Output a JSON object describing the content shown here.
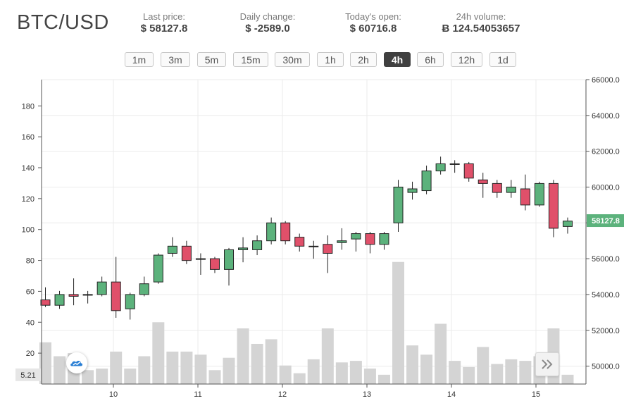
{
  "header": {
    "pair": "BTC/USD",
    "stats": [
      {
        "label": "Last price:",
        "value": "$ 58127.8"
      },
      {
        "label": "Daily change:",
        "value": "$ -2589.0"
      },
      {
        "label": "Today's open:",
        "value": "$ 60716.8"
      },
      {
        "label": "24h volume:",
        "value": "Ƀ 124.54053657"
      }
    ]
  },
  "intervals": [
    "1m",
    "3m",
    "5m",
    "15m",
    "30m",
    "1h",
    "2h",
    "4h",
    "6h",
    "12h",
    "1d"
  ],
  "active_interval": "4h",
  "colors": {
    "up": "#5cb27c",
    "down": "#e0506a",
    "volume": "#d4d4d4",
    "grid": "#ebebeb",
    "last_price_tag": "#5cb27c"
  },
  "icons": {
    "logo": "tradingview-cloud-icon",
    "scroll": "double-chevron-right-icon"
  },
  "chart_data": {
    "type": "candlestick",
    "x_ticks": [
      "10",
      "11",
      "12",
      "13",
      "14",
      "15"
    ],
    "price_axis": {
      "range": [
        49000,
        66000
      ],
      "ticks": [
        "50000.0",
        "52000.0",
        "54000.0",
        "56000.0",
        "58000.0",
        "60000.0",
        "62000.0",
        "64000.0",
        "66000.0"
      ]
    },
    "volume_axis": {
      "range": [
        0,
        197
      ],
      "ticks": [
        "20",
        "40",
        "60",
        "80",
        "100",
        "120",
        "140",
        "160",
        "180"
      ],
      "current": "5.21"
    },
    "last_price_label": "58127.8",
    "last_price": 58127.8,
    "grid": true,
    "candles": [
      {
        "o": 53700,
        "h": 54400,
        "l": 53300,
        "c": 53400,
        "v": 27
      },
      {
        "o": 53400,
        "h": 54200,
        "l": 53200,
        "c": 54000,
        "v": 18
      },
      {
        "o": 54000,
        "h": 54900,
        "l": 53400,
        "c": 53900,
        "v": 20
      },
      {
        "o": 54000,
        "h": 54200,
        "l": 53500,
        "c": 54000,
        "v": 9
      },
      {
        "o": 54000,
        "h": 55000,
        "l": 53900,
        "c": 54700,
        "v": 10
      },
      {
        "o": 54700,
        "h": 56100,
        "l": 52700,
        "c": 53100,
        "v": 21
      },
      {
        "o": 53200,
        "h": 54100,
        "l": 52600,
        "c": 54000,
        "v": 10
      },
      {
        "o": 54000,
        "h": 55000,
        "l": 53900,
        "c": 54600,
        "v": 18
      },
      {
        "o": 54700,
        "h": 56300,
        "l": 54600,
        "c": 56200,
        "v": 40
      },
      {
        "o": 56300,
        "h": 57200,
        "l": 56100,
        "c": 56700,
        "v": 21
      },
      {
        "o": 56700,
        "h": 57000,
        "l": 55700,
        "c": 55900,
        "v": 21
      },
      {
        "o": 56000,
        "h": 56300,
        "l": 55100,
        "c": 56000,
        "v": 19
      },
      {
        "o": 56000,
        "h": 56100,
        "l": 55200,
        "c": 55400,
        "v": 9
      },
      {
        "o": 55400,
        "h": 56600,
        "l": 54500,
        "c": 56500,
        "v": 17
      },
      {
        "o": 56500,
        "h": 57200,
        "l": 55800,
        "c": 56600,
        "v": 36
      },
      {
        "o": 56500,
        "h": 57300,
        "l": 56200,
        "c": 57000,
        "v": 26
      },
      {
        "o": 57000,
        "h": 58300,
        "l": 56800,
        "c": 58000,
        "v": 29
      },
      {
        "o": 58000,
        "h": 58100,
        "l": 56800,
        "c": 57000,
        "v": 12
      },
      {
        "o": 57200,
        "h": 57400,
        "l": 56400,
        "c": 56700,
        "v": 7
      },
      {
        "o": 56700,
        "h": 57000,
        "l": 56000,
        "c": 56700,
        "v": 16
      },
      {
        "o": 56800,
        "h": 57300,
        "l": 55200,
        "c": 56300,
        "v": 36
      },
      {
        "o": 56900,
        "h": 57700,
        "l": 56500,
        "c": 57000,
        "v": 14
      },
      {
        "o": 57100,
        "h": 57500,
        "l": 56400,
        "c": 57400,
        "v": 15
      },
      {
        "o": 57400,
        "h": 57500,
        "l": 56300,
        "c": 56800,
        "v": 10
      },
      {
        "o": 56800,
        "h": 57500,
        "l": 56500,
        "c": 57400,
        "v": 6
      },
      {
        "o": 58000,
        "h": 60400,
        "l": 57500,
        "c": 60000,
        "v": 79
      },
      {
        "o": 59700,
        "h": 60300,
        "l": 59300,
        "c": 59900,
        "v": 25
      },
      {
        "o": 59800,
        "h": 61200,
        "l": 59600,
        "c": 60900,
        "v": 19
      },
      {
        "o": 60900,
        "h": 61700,
        "l": 60700,
        "c": 61300,
        "v": 39
      },
      {
        "o": 61300,
        "h": 61500,
        "l": 60800,
        "c": 61300,
        "v": 15
      },
      {
        "o": 61300,
        "h": 61400,
        "l": 60300,
        "c": 60500,
        "v": 11
      },
      {
        "o": 60400,
        "h": 60800,
        "l": 59400,
        "c": 60200,
        "v": 24
      },
      {
        "o": 60200,
        "h": 60400,
        "l": 59400,
        "c": 59700,
        "v": 13
      },
      {
        "o": 59700,
        "h": 60400,
        "l": 59400,
        "c": 60000,
        "v": 16
      },
      {
        "o": 59900,
        "h": 60700,
        "l": 58700,
        "c": 59000,
        "v": 15
      },
      {
        "o": 59000,
        "h": 60300,
        "l": 58900,
        "c": 60200,
        "v": 18
      },
      {
        "o": 60200,
        "h": 60400,
        "l": 57200,
        "c": 57700,
        "v": 36
      },
      {
        "o": 57800,
        "h": 58300,
        "l": 57400,
        "c": 58100,
        "v": 6
      }
    ]
  }
}
